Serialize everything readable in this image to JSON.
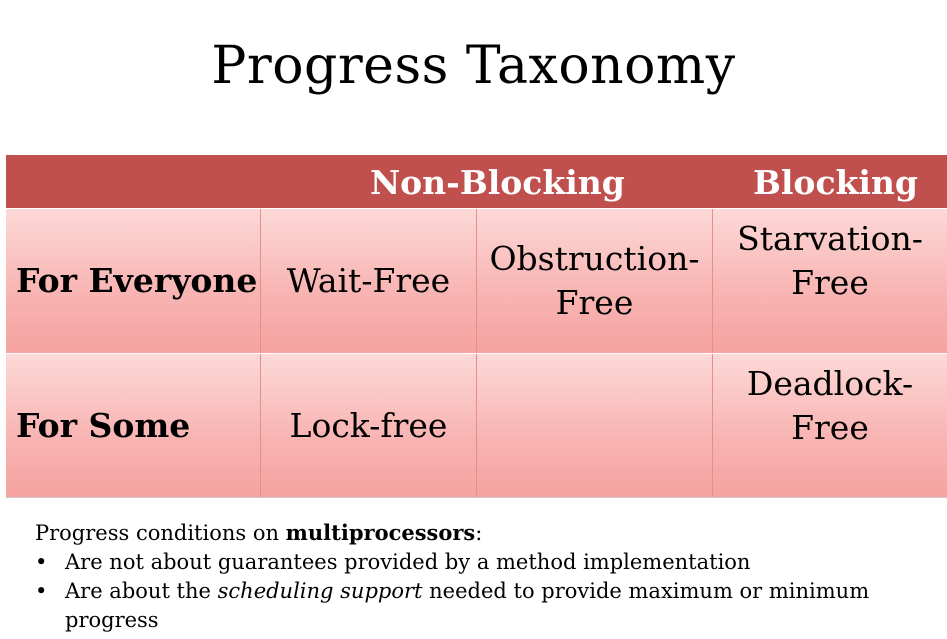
{
  "title": "Progress Taxonomy",
  "table": {
    "header": {
      "nonblocking": "Non-Blocking",
      "blocking": "Blocking"
    },
    "rows": [
      {
        "label": "For Everyone",
        "cells": [
          [
            "Wait-Free"
          ],
          [
            "Obstruction-",
            "Free"
          ],
          [
            "Starvation-",
            "Free"
          ]
        ]
      },
      {
        "label": "For Some",
        "cells": [
          [
            "Lock-free"
          ],
          [],
          [
            "Deadlock-",
            "Free"
          ]
        ]
      }
    ]
  },
  "notes": {
    "intro_prefix": "Progress conditions on ",
    "intro_bold": "multiprocessors",
    "intro_suffix": ":",
    "bullets": [
      {
        "text": "Are not about guarantees provided by a method implementation"
      },
      {
        "pre": "Are about the ",
        "em": "scheduling support",
        "post": " needed to provide maximum or minimum progress"
      }
    ],
    "bullet_symbol": "•"
  }
}
